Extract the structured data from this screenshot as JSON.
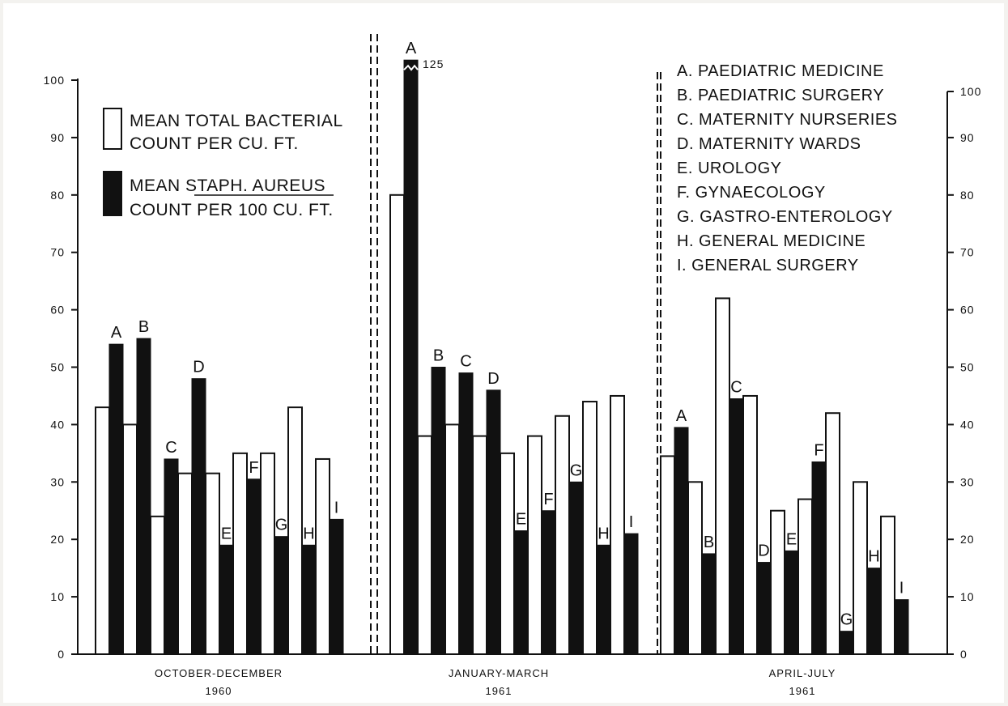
{
  "chart_data": {
    "type": "bar",
    "ylim": [
      0,
      100
    ],
    "yticks": [
      "0",
      "10",
      "20",
      "30",
      "40",
      "50",
      "60",
      "70",
      "80",
      "90",
      "100"
    ],
    "grid": false,
    "legend": [
      {
        "lines": [
          "MEAN TOTAL BACTERIAL",
          "COUNT PER CU. FT."
        ],
        "style": "white bar"
      },
      {
        "lines": [
          "MEAN STAPH. AUREUS",
          "COUNT PER 100 CU. FT."
        ],
        "underlined": "STAPH. AUREUS",
        "style": "black bar"
      }
    ],
    "key": [
      "A. PAEDIATRIC  MEDICINE",
      "B. PAEDIATRIC  SURGERY",
      "C. MATERNITY  NURSERIES",
      "D. MATERNITY  WARDS",
      "E. UROLOGY",
      "F.  GYNAECOLOGY",
      "G. GASTRO-ENTEROLOGY",
      "H. GENERAL  MEDICINE",
      "I.  GENERAL  SURGERY"
    ],
    "categories": [
      "A",
      "B",
      "C",
      "D",
      "E",
      "F",
      "G",
      "H",
      "I"
    ],
    "periods": [
      {
        "name": [
          "OCTOBER-DECEMBER",
          "1960"
        ],
        "total": [
          43,
          40,
          24,
          31.5,
          31.5,
          35,
          35,
          43,
          34
        ],
        "staph": [
          54,
          55,
          34,
          48,
          19,
          30.5,
          20.5,
          19,
          23.5
        ]
      },
      {
        "name": [
          "JANUARY-MARCH",
          "1961"
        ],
        "total": [
          80,
          38,
          40,
          38,
          35,
          38,
          41.5,
          44,
          45
        ],
        "staph": [
          125,
          50,
          49,
          46,
          21.5,
          25,
          30,
          19,
          21
        ],
        "broken_bar": {
          "category": "A",
          "label": "125"
        }
      },
      {
        "name": [
          "APRIL-JULY",
          "1961"
        ],
        "total": [
          34.5,
          30,
          62,
          45,
          25,
          27,
          42,
          30,
          24
        ],
        "staph": [
          39.5,
          17.5,
          44.5,
          16,
          18,
          33.5,
          4,
          15,
          9.5
        ]
      }
    ]
  }
}
